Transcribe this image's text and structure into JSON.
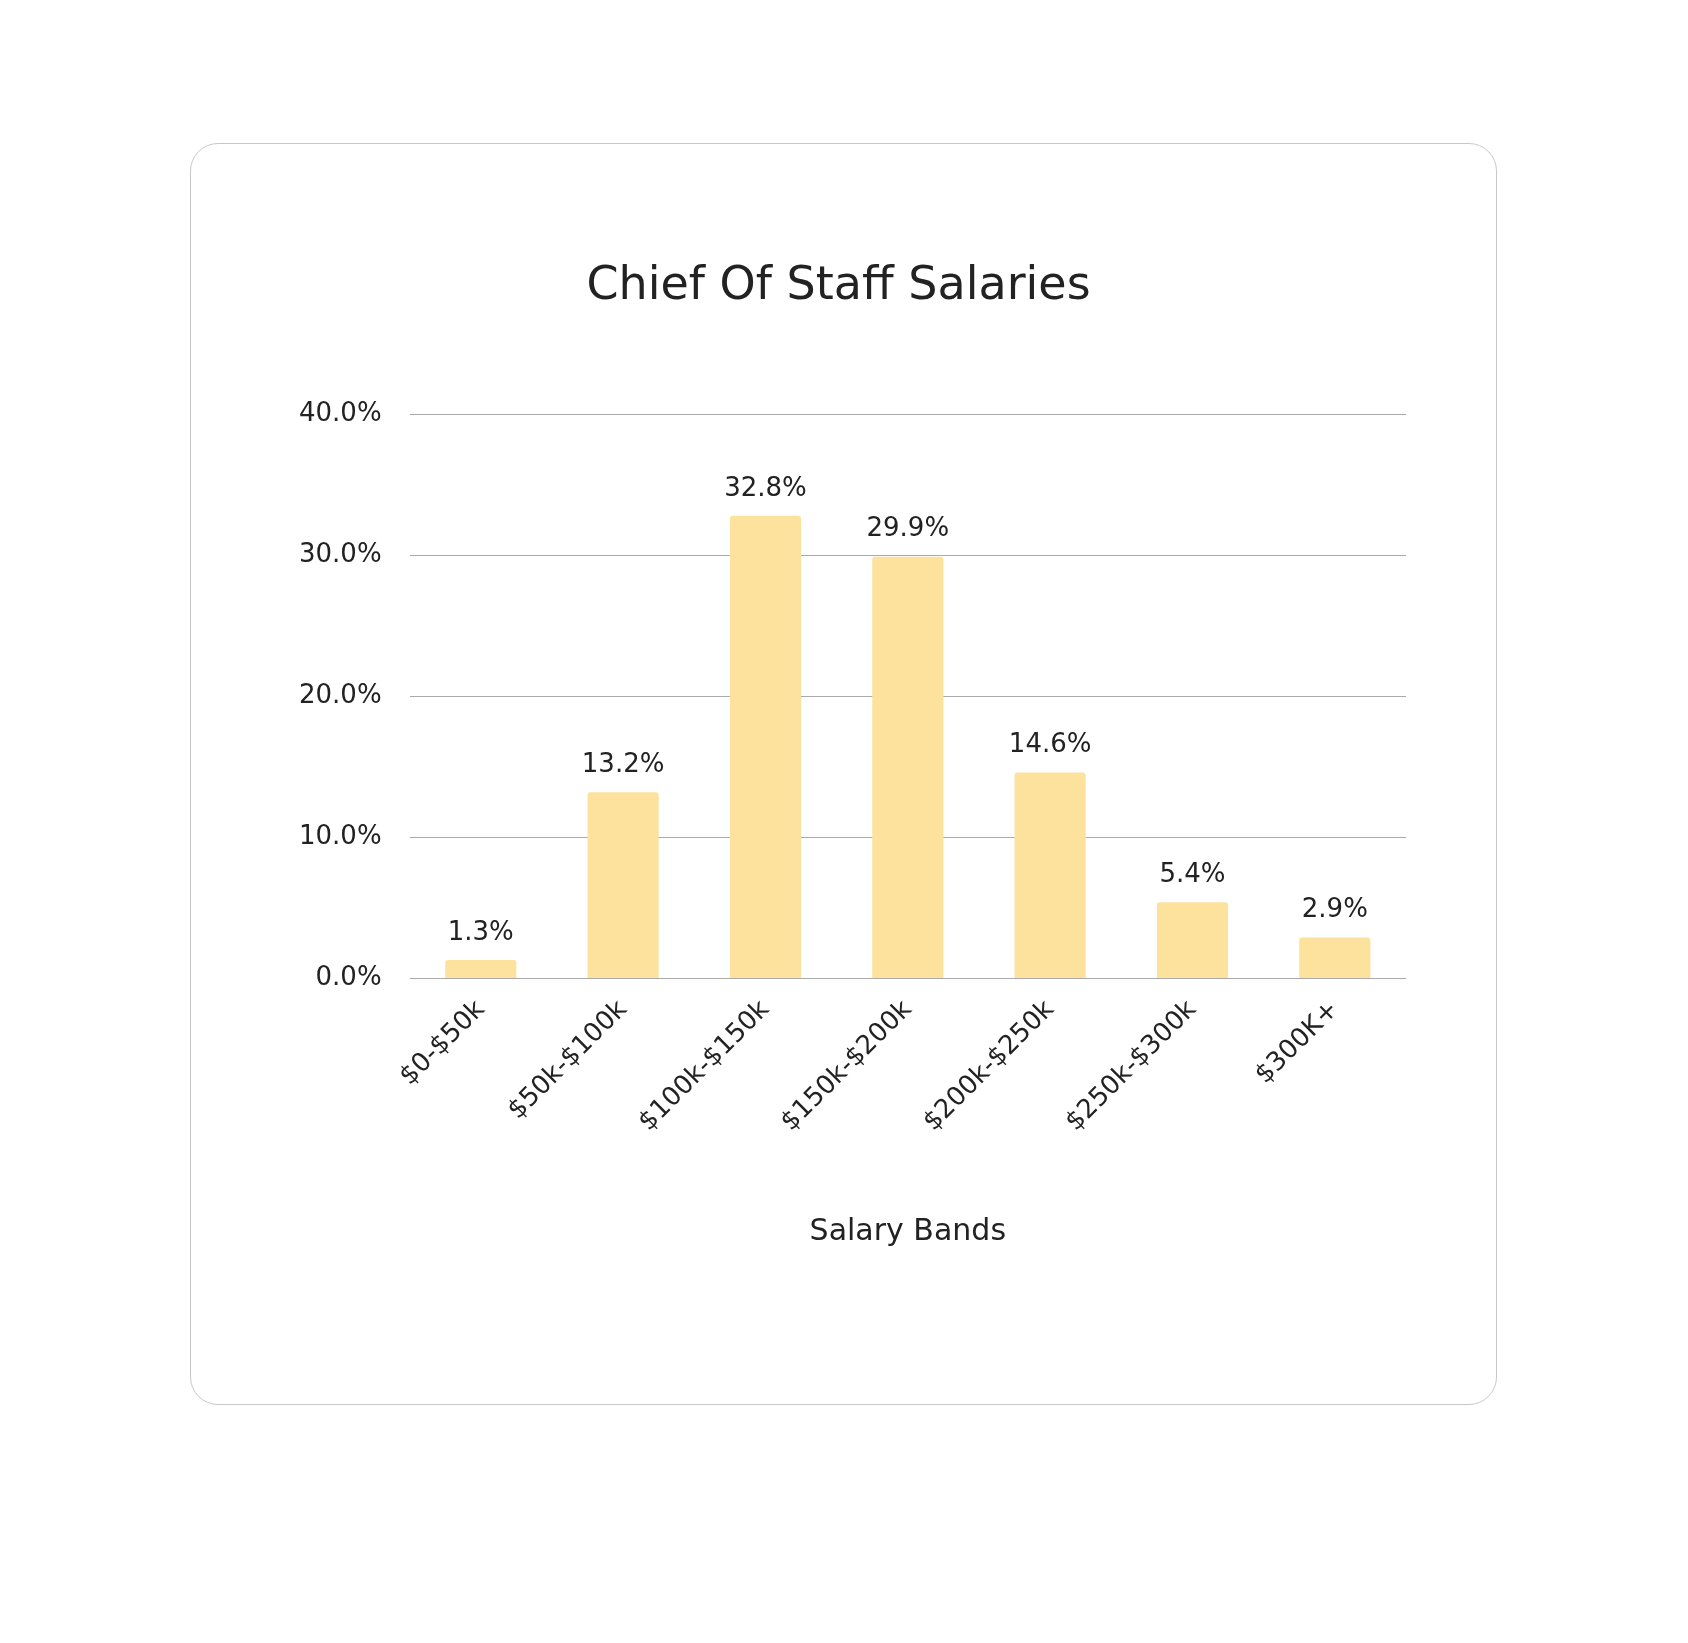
{
  "chart_data": {
    "type": "bar",
    "title": "Chief Of Staff Salaries",
    "xlabel": "Salary Bands",
    "categories": [
      "$0-$50k",
      "$50k-$100k",
      "$100k-$150k",
      "$150k-$200k",
      "$200k-$250k",
      "$250k-$300k",
      "$300K+"
    ],
    "values": [
      1.3,
      13.2,
      32.8,
      29.9,
      14.6,
      5.4,
      2.9
    ],
    "value_labels": [
      "1.3%",
      "13.2%",
      "32.8%",
      "29.9%",
      "14.6%",
      "5.4%",
      "2.9%"
    ],
    "color": "#fde29e",
    "ylim": [
      0,
      40
    ],
    "yticks": [
      {
        "value": 0,
        "label": "0.0%"
      },
      {
        "value": 10,
        "label": "10.0%"
      },
      {
        "value": 20,
        "label": "20.0%"
      },
      {
        "value": 30,
        "label": "30.0%"
      },
      {
        "value": 40,
        "label": "40.0%"
      }
    ],
    "grid": "y"
  }
}
